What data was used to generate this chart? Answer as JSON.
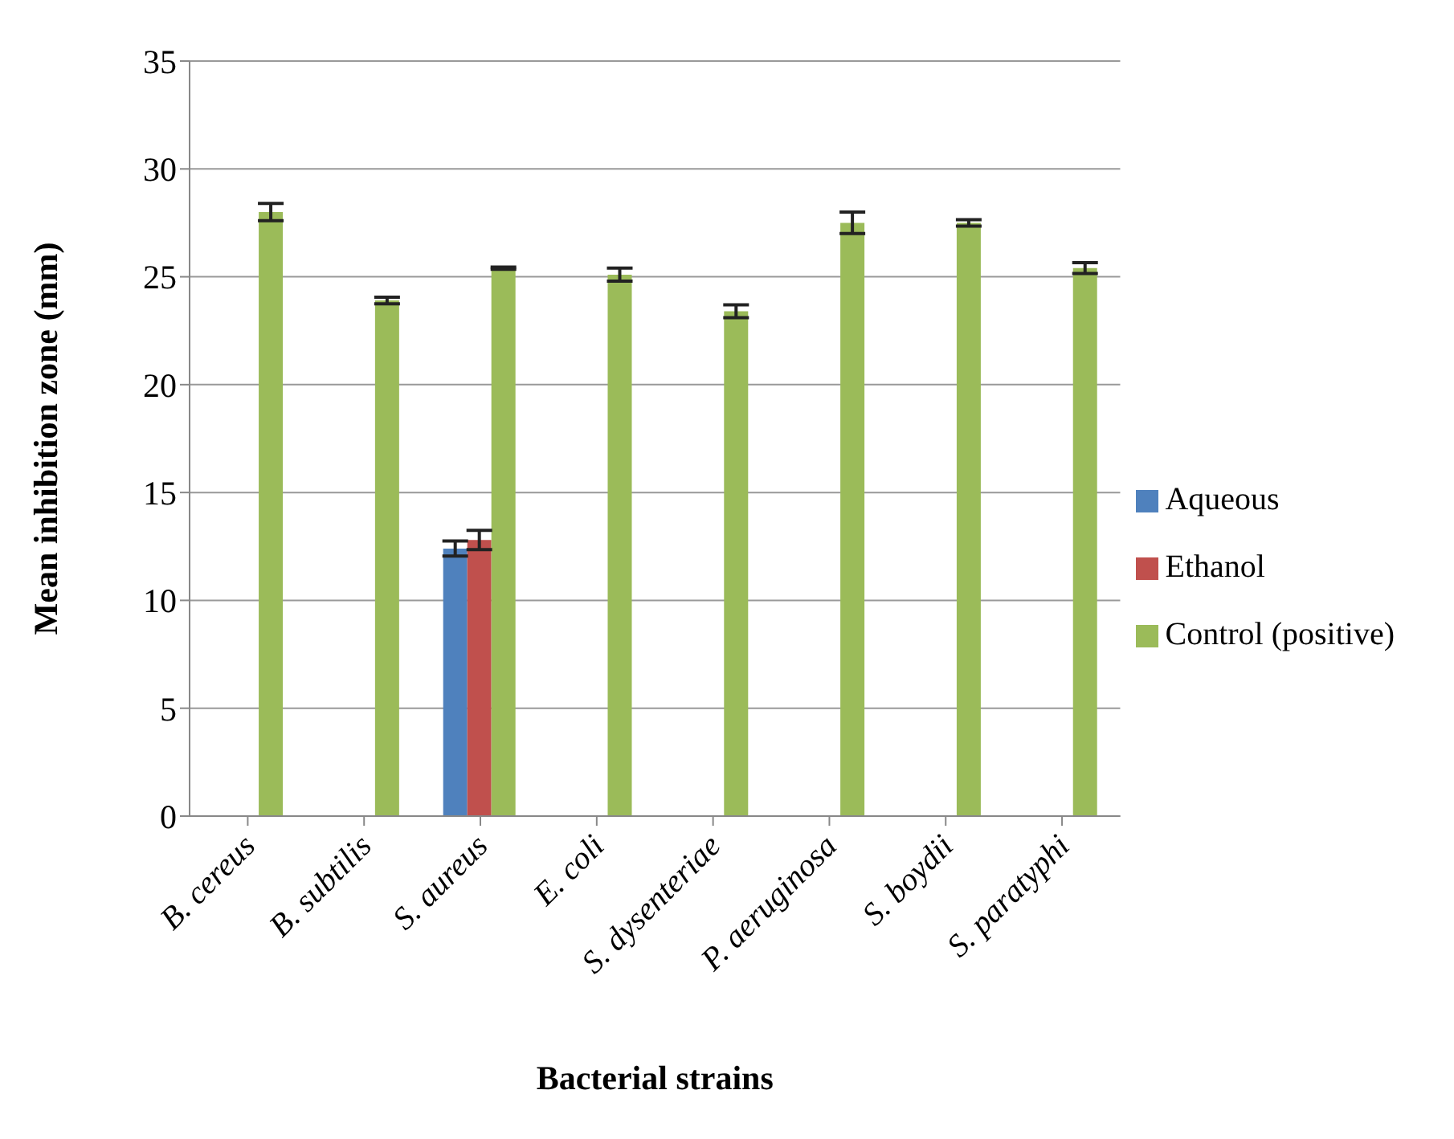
{
  "chart_data": {
    "type": "bar",
    "xlabel": "Bacterial strains",
    "ylabel": "Mean inhibition zone (mm)",
    "categories": [
      "B. cereus",
      "B. subtilis",
      "S. aureus",
      "E. coli",
      "S. dysenteriae",
      "P. aeruginosa",
      "S. boydii",
      "S. paratyphi"
    ],
    "series": [
      {
        "name": "Aqueous",
        "color": "#4f81bd",
        "values": [
          0,
          0,
          12.4,
          0,
          0,
          0,
          0,
          0
        ],
        "errors": [
          0,
          0,
          0.35,
          0,
          0,
          0,
          0,
          0
        ]
      },
      {
        "name": "Ethanol",
        "color": "#c0504d",
        "values": [
          0,
          0,
          12.8,
          0,
          0,
          0,
          0,
          0
        ],
        "errors": [
          0,
          0,
          0.45,
          0,
          0,
          0,
          0,
          0
        ]
      },
      {
        "name": "Control (positive)",
        "color": "#9bbb59",
        "values": [
          28.0,
          23.9,
          25.4,
          25.1,
          23.4,
          27.5,
          27.5,
          25.4
        ],
        "errors": [
          0.4,
          0.15,
          0.05,
          0.3,
          0.3,
          0.5,
          0.15,
          0.25
        ]
      }
    ],
    "ylim": [
      0,
      35
    ],
    "yticks": [
      0,
      5,
      10,
      15,
      20,
      25,
      30,
      35
    ],
    "grid": "y",
    "legend": "right"
  }
}
